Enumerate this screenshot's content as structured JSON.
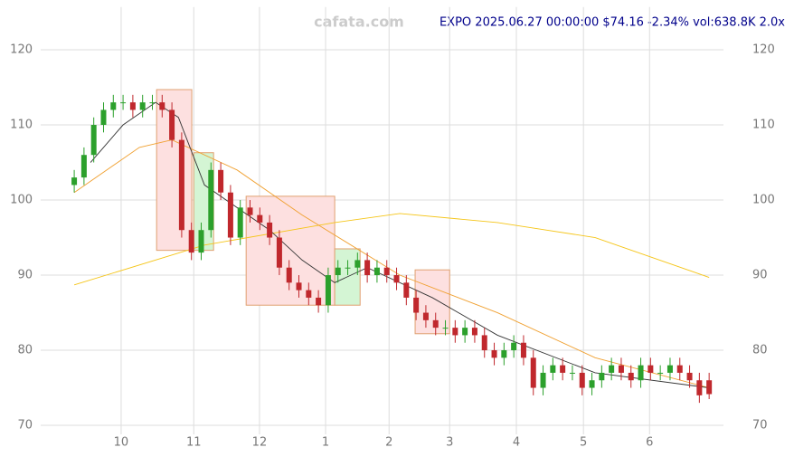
{
  "chart_data": {
    "type": "candlestick",
    "watermark": "cafata.com",
    "title": "EXPO 2025.06.27 00:00:00 $74.16 -2.34% vol:638.8K 2.0x",
    "x": [
      0,
      3,
      6,
      9,
      12,
      15,
      18,
      21,
      24,
      27,
      30,
      33,
      36,
      39,
      42,
      45,
      48,
      51,
      54,
      57,
      60,
      63,
      66,
      69,
      72,
      75,
      78,
      81,
      84,
      87,
      90,
      93,
      96,
      99,
      102,
      105,
      108,
      111,
      114,
      117,
      120,
      123,
      126,
      129,
      132,
      135,
      138,
      141,
      144,
      147,
      150,
      153,
      156,
      159,
      162,
      165,
      168,
      171,
      174,
      177,
      180,
      183,
      186,
      189,
      192,
      195
    ],
    "open": [
      102,
      103,
      106,
      110,
      112,
      113,
      113,
      112,
      113,
      113,
      112,
      108,
      96,
      93,
      96,
      104,
      101,
      95,
      99,
      98,
      97,
      95,
      91,
      89,
      88,
      87,
      86,
      90,
      91,
      91,
      92,
      90,
      91,
      90,
      89,
      87,
      85,
      84,
      83,
      83,
      82,
      83,
      82,
      80,
      79,
      80,
      81,
      79,
      75,
      77,
      78,
      77,
      77,
      75,
      76,
      77,
      78,
      77,
      76,
      78,
      77,
      77,
      78,
      77,
      76,
      76
    ],
    "high": [
      104,
      107,
      111,
      113,
      114,
      114,
      114,
      114,
      114,
      114,
      113,
      109,
      97,
      97,
      105,
      105,
      102,
      100,
      100,
      99,
      98,
      96,
      92,
      90,
      89,
      88,
      91,
      92,
      92,
      93,
      93,
      92,
      92,
      91,
      90,
      88,
      86,
      85,
      84,
      84,
      84,
      84,
      83,
      81,
      81,
      82,
      82,
      80,
      78,
      79,
      79,
      78,
      78,
      77,
      78,
      79,
      79,
      78,
      79,
      79,
      78,
      79,
      79,
      78,
      77,
      77
    ],
    "low": [
      101,
      102,
      105,
      109,
      111,
      112,
      111,
      111,
      112,
      111,
      107,
      95,
      92,
      92,
      95,
      100,
      94,
      94,
      97,
      96,
      94,
      90,
      88,
      87,
      86,
      85,
      85,
      89,
      90,
      90,
      89,
      89,
      89,
      88,
      86,
      84,
      83,
      82,
      82,
      81,
      81,
      81,
      79,
      78,
      78,
      79,
      78,
      74,
      74,
      76,
      76,
      76,
      74,
      74,
      75,
      76,
      76,
      75,
      75,
      76,
      76,
      76,
      76,
      75,
      73,
      73.5
    ],
    "close": [
      103,
      106,
      110,
      112,
      113,
      113,
      112,
      113,
      113,
      112,
      108,
      96,
      93,
      96,
      104,
      101,
      95,
      99,
      98,
      97,
      95,
      91,
      89,
      88,
      87,
      86,
      90,
      91,
      91,
      92,
      90,
      91,
      90,
      89,
      87,
      85,
      84,
      83,
      83,
      82,
      83,
      82,
      80,
      79,
      80,
      81,
      79,
      75,
      77,
      78,
      77,
      77,
      75,
      76,
      77,
      78,
      77,
      76,
      78,
      77,
      77,
      78,
      77,
      76,
      74,
      74.16
    ],
    "up_color": "#2ca02c",
    "down_color": "#c0282d",
    "lines": [
      {
        "color": "#f5c518",
        "x": [
          0,
          40,
          80,
          100,
          130,
          160,
          195
        ],
        "values": [
          88.7,
          94,
          97,
          98.2,
          97,
          95,
          89.7
        ]
      },
      {
        "color": "#f0a030",
        "x": [
          0,
          20,
          30,
          50,
          70,
          100,
          130,
          160,
          195
        ],
        "values": [
          101,
          107,
          108,
          104,
          98,
          90,
          85,
          79,
          75
        ]
      },
      {
        "color": "#333333",
        "x": [
          5,
          15,
          25,
          32,
          40,
          50,
          60,
          70,
          80,
          90,
          110,
          130,
          160,
          195
        ],
        "values": [
          105,
          110,
          113,
          111,
          102,
          99,
          96,
          92,
          89,
          91,
          87,
          82,
          77,
          75
        ]
      }
    ],
    "boxes": [
      {
        "x0": 25.3,
        "x1": 36.1,
        "y0": 93.3,
        "y1": 114.7,
        "color": "#fde0e0"
      },
      {
        "x0": 36.7,
        "x1": 42.8,
        "y0": 93.3,
        "y1": 106.3,
        "color": "#d4f5d4"
      },
      {
        "x0": 52.8,
        "x1": 80,
        "y0": 86,
        "y1": 100.5,
        "color": "#fde0e0"
      },
      {
        "x0": 80,
        "x1": 87.8,
        "y0": 86,
        "y1": 93.5,
        "color": "#d4f5d4"
      },
      {
        "x0": 104.7,
        "x1": 115.3,
        "y0": 82.2,
        "y1": 90.7,
        "color": "#fde0e0"
      }
    ],
    "xlim": [
      -10.3,
      199.4
    ],
    "xticks": [
      {
        "value": 14.4,
        "label": "10"
      },
      {
        "value": 36.7,
        "label": "11"
      },
      {
        "value": 56.9,
        "label": "12"
      },
      {
        "value": 77.2,
        "label": "1"
      },
      {
        "value": 96.7,
        "label": "2"
      },
      {
        "value": 115.3,
        "label": "3"
      },
      {
        "value": 135.8,
        "label": "4"
      },
      {
        "value": 156.4,
        "label": "5"
      },
      {
        "value": 176.7,
        "label": "6"
      }
    ],
    "ylim": [
      68.8,
      125.7
    ],
    "yticks": [
      70,
      80,
      90,
      100,
      110,
      120
    ],
    "grid": true
  }
}
